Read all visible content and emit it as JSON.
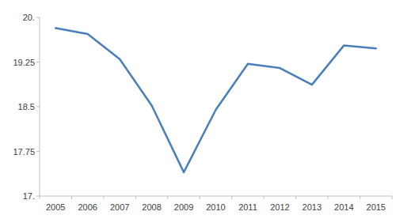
{
  "chart_data": {
    "type": "line",
    "categories": [
      "2005",
      "2006",
      "2007",
      "2008",
      "2009",
      "2010",
      "2011",
      "2012",
      "2013",
      "2014",
      "2015"
    ],
    "values": [
      19.82,
      19.72,
      19.3,
      18.52,
      17.4,
      18.45,
      19.22,
      19.15,
      18.87,
      19.53,
      19.48
    ],
    "color": "#4a7ebb",
    "ylim": [
      17,
      20
    ],
    "yticks": [
      {
        "value": 17,
        "label": "17."
      },
      17.75,
      18.5,
      19.25,
      {
        "value": 20,
        "label": "20."
      }
    ],
    "grid": false
  }
}
